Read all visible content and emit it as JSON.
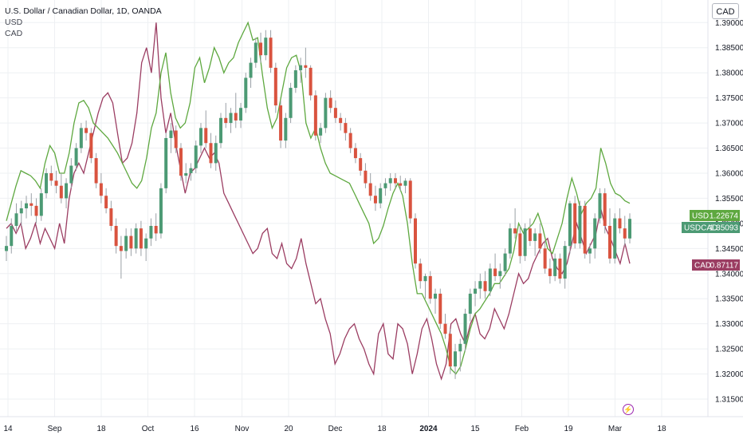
{
  "legend": {
    "symbol": "U.S. Dollar / Canadian Dollar, 1D, OANDA",
    "compare1": "USD",
    "compare2": "CAD"
  },
  "currency_button": "CAD",
  "colors": {
    "up": "#4c9a74",
    "down": "#d9533f",
    "usd_line": "#5ea83f",
    "cad_line": "#9b3d62",
    "grid": "#eef0f3"
  },
  "chart_data": {
    "type": "candlestick",
    "symbol": "USDCAD",
    "y_ticks": [
      "1.39000",
      "1.38500",
      "1.38000",
      "1.37500",
      "1.37000",
      "1.36500",
      "1.36000",
      "1.35500",
      "1.35000",
      "1.34500",
      "1.34000",
      "1.33500",
      "1.33000",
      "1.32500",
      "1.32000",
      "1.31500"
    ],
    "y_range": [
      1.3115,
      1.3945
    ],
    "x_labels": [
      "14",
      "Sep",
      "18",
      "Oct",
      "16",
      "Nov",
      "20",
      "Dec",
      "18",
      "2024",
      "15",
      "Feb",
      "19",
      "Mar",
      "18"
    ],
    "price_labels": {
      "usd": {
        "name": "USD",
        "value": "1.22674"
      },
      "usdcad": {
        "name": "USDCAD",
        "value": "1.35093"
      },
      "cad": {
        "name": "CAD",
        "value": "0.87117"
      }
    },
    "candles": [
      [
        1.3445,
        1.3475,
        1.3425,
        1.3455
      ],
      [
        1.3455,
        1.351,
        1.344,
        1.3495
      ],
      [
        1.3495,
        1.354,
        1.3485,
        1.352
      ],
      [
        1.352,
        1.3545,
        1.3495,
        1.353
      ],
      [
        1.353,
        1.3555,
        1.351,
        1.354
      ],
      [
        1.354,
        1.356,
        1.3515,
        1.3535
      ],
      [
        1.3535,
        1.355,
        1.35,
        1.3515
      ],
      [
        1.3515,
        1.357,
        1.3505,
        1.356
      ],
      [
        1.356,
        1.361,
        1.355,
        1.36
      ],
      [
        1.36,
        1.3615,
        1.3575,
        1.3585
      ],
      [
        1.3585,
        1.3605,
        1.356,
        1.3575
      ],
      [
        1.3575,
        1.36,
        1.354,
        1.355
      ],
      [
        1.355,
        1.359,
        1.353,
        1.358
      ],
      [
        1.358,
        1.363,
        1.357,
        1.3615
      ],
      [
        1.3615,
        1.366,
        1.3605,
        1.365
      ],
      [
        1.365,
        1.37,
        1.364,
        1.369
      ],
      [
        1.369,
        1.3705,
        1.3665,
        1.368
      ],
      [
        1.368,
        1.369,
        1.362,
        1.363
      ],
      [
        1.363,
        1.364,
        1.357,
        1.358
      ],
      [
        1.358,
        1.36,
        1.354,
        1.3555
      ],
      [
        1.3555,
        1.357,
        1.352,
        1.353
      ],
      [
        1.353,
        1.3545,
        1.3485,
        1.3495
      ],
      [
        1.3495,
        1.351,
        1.344,
        1.3455
      ],
      [
        1.3455,
        1.3475,
        1.339,
        1.3445
      ],
      [
        1.3445,
        1.349,
        1.343,
        1.3475
      ],
      [
        1.3475,
        1.349,
        1.3435,
        1.345
      ],
      [
        1.345,
        1.35,
        1.344,
        1.349
      ],
      [
        1.349,
        1.3505,
        1.3435,
        1.345
      ],
      [
        1.345,
        1.348,
        1.3425,
        1.347
      ],
      [
        1.347,
        1.351,
        1.3455,
        1.3495
      ],
      [
        1.3495,
        1.352,
        1.3465,
        1.348
      ],
      [
        1.348,
        1.358,
        1.347,
        1.357
      ],
      [
        1.357,
        1.368,
        1.356,
        1.367
      ],
      [
        1.367,
        1.37,
        1.364,
        1.3685
      ],
      [
        1.3685,
        1.3695,
        1.364,
        1.365
      ],
      [
        1.365,
        1.366,
        1.3585,
        1.3595
      ],
      [
        1.3595,
        1.362,
        1.358,
        1.36
      ],
      [
        1.36,
        1.362,
        1.3585,
        1.361
      ],
      [
        1.361,
        1.3665,
        1.36,
        1.3655
      ],
      [
        1.3655,
        1.37,
        1.364,
        1.369
      ],
      [
        1.369,
        1.3725,
        1.365,
        1.366
      ],
      [
        1.366,
        1.368,
        1.361,
        1.362
      ],
      [
        1.362,
        1.3675,
        1.3605,
        1.366
      ],
      [
        1.366,
        1.372,
        1.365,
        1.371
      ],
      [
        1.371,
        1.374,
        1.369,
        1.37
      ],
      [
        1.37,
        1.373,
        1.368,
        1.372
      ],
      [
        1.372,
        1.376,
        1.369,
        1.3705
      ],
      [
        1.3705,
        1.374,
        1.369,
        1.373
      ],
      [
        1.373,
        1.38,
        1.372,
        1.379
      ],
      [
        1.379,
        1.383,
        1.377,
        1.382
      ],
      [
        1.382,
        1.387,
        1.381,
        1.386
      ],
      [
        1.386,
        1.388,
        1.382,
        1.3835
      ],
      [
        1.3835,
        1.3885,
        1.3825,
        1.387
      ],
      [
        1.387,
        1.3885,
        1.38,
        1.381
      ],
      [
        1.381,
        1.382,
        1.372,
        1.3735
      ],
      [
        1.3735,
        1.3745,
        1.365,
        1.3665
      ],
      [
        1.3665,
        1.372,
        1.365,
        1.371
      ],
      [
        1.371,
        1.378,
        1.37,
        1.377
      ],
      [
        1.377,
        1.3815,
        1.376,
        1.3805
      ],
      [
        1.3805,
        1.383,
        1.378,
        1.3815
      ],
      [
        1.3815,
        1.385,
        1.379,
        1.381
      ],
      [
        1.381,
        1.3815,
        1.3745,
        1.3755
      ],
      [
        1.3755,
        1.3765,
        1.3665,
        1.3675
      ],
      [
        1.3675,
        1.37,
        1.366,
        1.369
      ],
      [
        1.369,
        1.376,
        1.368,
        1.375
      ],
      [
        1.375,
        1.3765,
        1.372,
        1.373
      ],
      [
        1.373,
        1.3745,
        1.37,
        1.371
      ],
      [
        1.371,
        1.372,
        1.3685,
        1.37
      ],
      [
        1.37,
        1.371,
        1.3665,
        1.368
      ],
      [
        1.368,
        1.369,
        1.364,
        1.365
      ],
      [
        1.365,
        1.366,
        1.362,
        1.363
      ],
      [
        1.363,
        1.364,
        1.3595,
        1.3605
      ],
      [
        1.3605,
        1.362,
        1.357,
        1.358
      ],
      [
        1.358,
        1.36,
        1.3545,
        1.3555
      ],
      [
        1.3555,
        1.3575,
        1.3525,
        1.354
      ],
      [
        1.354,
        1.358,
        1.353,
        1.357
      ],
      [
        1.357,
        1.359,
        1.3555,
        1.358
      ],
      [
        1.358,
        1.36,
        1.3565,
        1.359
      ],
      [
        1.359,
        1.36,
        1.357,
        1.358
      ],
      [
        1.358,
        1.3595,
        1.3565,
        1.3575
      ],
      [
        1.3575,
        1.359,
        1.356,
        1.3585
      ],
      [
        1.3585,
        1.359,
        1.35,
        1.351
      ],
      [
        1.351,
        1.352,
        1.341,
        1.342
      ],
      [
        1.342,
        1.343,
        1.337,
        1.3385
      ],
      [
        1.3385,
        1.34,
        1.335,
        1.3395
      ],
      [
        1.3395,
        1.3405,
        1.334,
        1.335
      ],
      [
        1.335,
        1.337,
        1.332,
        1.336
      ],
      [
        1.336,
        1.337,
        1.329,
        1.33
      ],
      [
        1.33,
        1.332,
        1.327,
        1.328
      ],
      [
        1.328,
        1.329,
        1.32,
        1.3215
      ],
      [
        1.3215,
        1.326,
        1.319,
        1.3245
      ],
      [
        1.3245,
        1.327,
        1.3205,
        1.326
      ],
      [
        1.326,
        1.333,
        1.3245,
        1.332
      ],
      [
        1.332,
        1.337,
        1.3305,
        1.336
      ],
      [
        1.336,
        1.3385,
        1.3335,
        1.337
      ],
      [
        1.337,
        1.34,
        1.335,
        1.3385
      ],
      [
        1.3385,
        1.3405,
        1.335,
        1.3365
      ],
      [
        1.3365,
        1.342,
        1.3355,
        1.341
      ],
      [
        1.341,
        1.344,
        1.3385,
        1.3395
      ],
      [
        1.3395,
        1.342,
        1.337,
        1.3405
      ],
      [
        1.3405,
        1.345,
        1.3395,
        1.344
      ],
      [
        1.344,
        1.35,
        1.343,
        1.349
      ],
      [
        1.349,
        1.353,
        1.347,
        1.348
      ],
      [
        1.348,
        1.3495,
        1.342,
        1.3435
      ],
      [
        1.3435,
        1.35,
        1.3425,
        1.349
      ],
      [
        1.349,
        1.351,
        1.3455,
        1.3465
      ],
      [
        1.3465,
        1.349,
        1.3435,
        1.348
      ],
      [
        1.348,
        1.35,
        1.344,
        1.345
      ],
      [
        1.345,
        1.3465,
        1.34,
        1.341
      ],
      [
        1.341,
        1.343,
        1.338,
        1.3395
      ],
      [
        1.3395,
        1.344,
        1.3385,
        1.343
      ],
      [
        1.343,
        1.344,
        1.338,
        1.339
      ],
      [
        1.339,
        1.3465,
        1.337,
        1.3455
      ],
      [
        1.3455,
        1.3545,
        1.344,
        1.354
      ],
      [
        1.354,
        1.3555,
        1.345,
        1.346
      ],
      [
        1.346,
        1.3545,
        1.345,
        1.3535
      ],
      [
        1.3535,
        1.3545,
        1.343,
        1.344
      ],
      [
        1.344,
        1.346,
        1.342,
        1.345
      ],
      [
        1.345,
        1.352,
        1.343,
        1.351
      ],
      [
        1.351,
        1.357,
        1.35,
        1.356
      ],
      [
        1.356,
        1.357,
        1.348,
        1.3495
      ],
      [
        1.3495,
        1.353,
        1.342,
        1.343
      ],
      [
        1.343,
        1.352,
        1.342,
        1.351
      ],
      [
        1.351,
        1.353,
        1.348,
        1.349
      ],
      [
        1.349,
        1.3515,
        1.3455,
        1.347
      ],
      [
        1.347,
        1.352,
        1.346,
        1.3509
      ]
    ],
    "usd_line": [
      1.3505,
      1.354,
      1.3575,
      1.3605,
      1.36,
      1.3595,
      1.3585,
      1.357,
      1.362,
      1.3655,
      1.364,
      1.36,
      1.36,
      1.364,
      1.37,
      1.374,
      1.3745,
      1.373,
      1.37,
      1.369,
      1.368,
      1.367,
      1.3655,
      1.364,
      1.362,
      1.36,
      1.358,
      1.357,
      1.3585,
      1.363,
      1.369,
      1.372,
      1.38,
      1.384,
      1.376,
      1.371,
      1.369,
      1.37,
      1.374,
      1.381,
      1.383,
      1.378,
      1.381,
      1.385,
      1.383,
      1.38,
      1.382,
      1.383,
      1.386,
      1.388,
      1.39,
      1.3865,
      1.387,
      1.3795,
      1.373,
      1.369,
      1.371,
      1.376,
      1.381,
      1.383,
      1.3835,
      1.38,
      1.37,
      1.367,
      1.369,
      1.365,
      1.362,
      1.36,
      1.3595,
      1.359,
      1.3585,
      1.358,
      1.356,
      1.354,
      1.352,
      1.35,
      1.346,
      1.347,
      1.3495,
      1.353,
      1.356,
      1.358,
      1.3555,
      1.35,
      1.342,
      1.336,
      1.336,
      1.334,
      1.332,
      1.33,
      1.328,
      1.325,
      1.321,
      1.32,
      1.3215,
      1.325,
      1.329,
      1.332,
      1.333,
      1.3345,
      1.336,
      1.338,
      1.338,
      1.3395,
      1.341,
      1.3445,
      1.35,
      1.348,
      1.349,
      1.35,
      1.352,
      1.349,
      1.345,
      1.344,
      1.347,
      1.35,
      1.355,
      1.359,
      1.356,
      1.352,
      1.354,
      1.355,
      1.357,
      1.365,
      1.362,
      1.358,
      1.356,
      1.3555,
      1.3545,
      1.354
    ],
    "cad_line": [
      1.349,
      1.35,
      1.348,
      1.35,
      1.345,
      1.347,
      1.35,
      1.346,
      1.349,
      1.347,
      1.345,
      1.35,
      1.346,
      1.355,
      1.36,
      1.362,
      1.36,
      1.364,
      1.368,
      1.372,
      1.375,
      1.376,
      1.374,
      1.368,
      1.362,
      1.363,
      1.366,
      1.372,
      1.382,
      1.385,
      1.38,
      1.39,
      1.375,
      1.368,
      1.372,
      1.366,
      1.361,
      1.356,
      1.36,
      1.361,
      1.363,
      1.365,
      1.363,
      1.364,
      1.362,
      1.356,
      1.354,
      1.352,
      1.35,
      1.348,
      1.346,
      1.344,
      1.345,
      1.348,
      1.349,
      1.344,
      1.343,
      1.346,
      1.342,
      1.341,
      1.343,
      1.347,
      1.342,
      1.338,
      1.334,
      1.335,
      1.331,
      1.328,
      1.322,
      1.324,
      1.327,
      1.329,
      1.33,
      1.327,
      1.325,
      1.322,
      1.32,
      1.328,
      1.33,
      1.324,
      1.323,
      1.33,
      1.329,
      1.326,
      1.32,
      1.324,
      1.329,
      1.331,
      1.327,
      1.322,
      1.319,
      1.322,
      1.33,
      1.331,
      1.328,
      1.326,
      1.33,
      1.332,
      1.328,
      1.327,
      1.329,
      1.333,
      1.331,
      1.329,
      1.332,
      1.336,
      1.34,
      1.338,
      1.339,
      1.342,
      1.344,
      1.346,
      1.347,
      1.343,
      1.341,
      1.34,
      1.342,
      1.346,
      1.35,
      1.347,
      1.344,
      1.346,
      1.348,
      1.353,
      1.349,
      1.347,
      1.3445,
      1.342,
      1.346,
      1.342
    ]
  }
}
